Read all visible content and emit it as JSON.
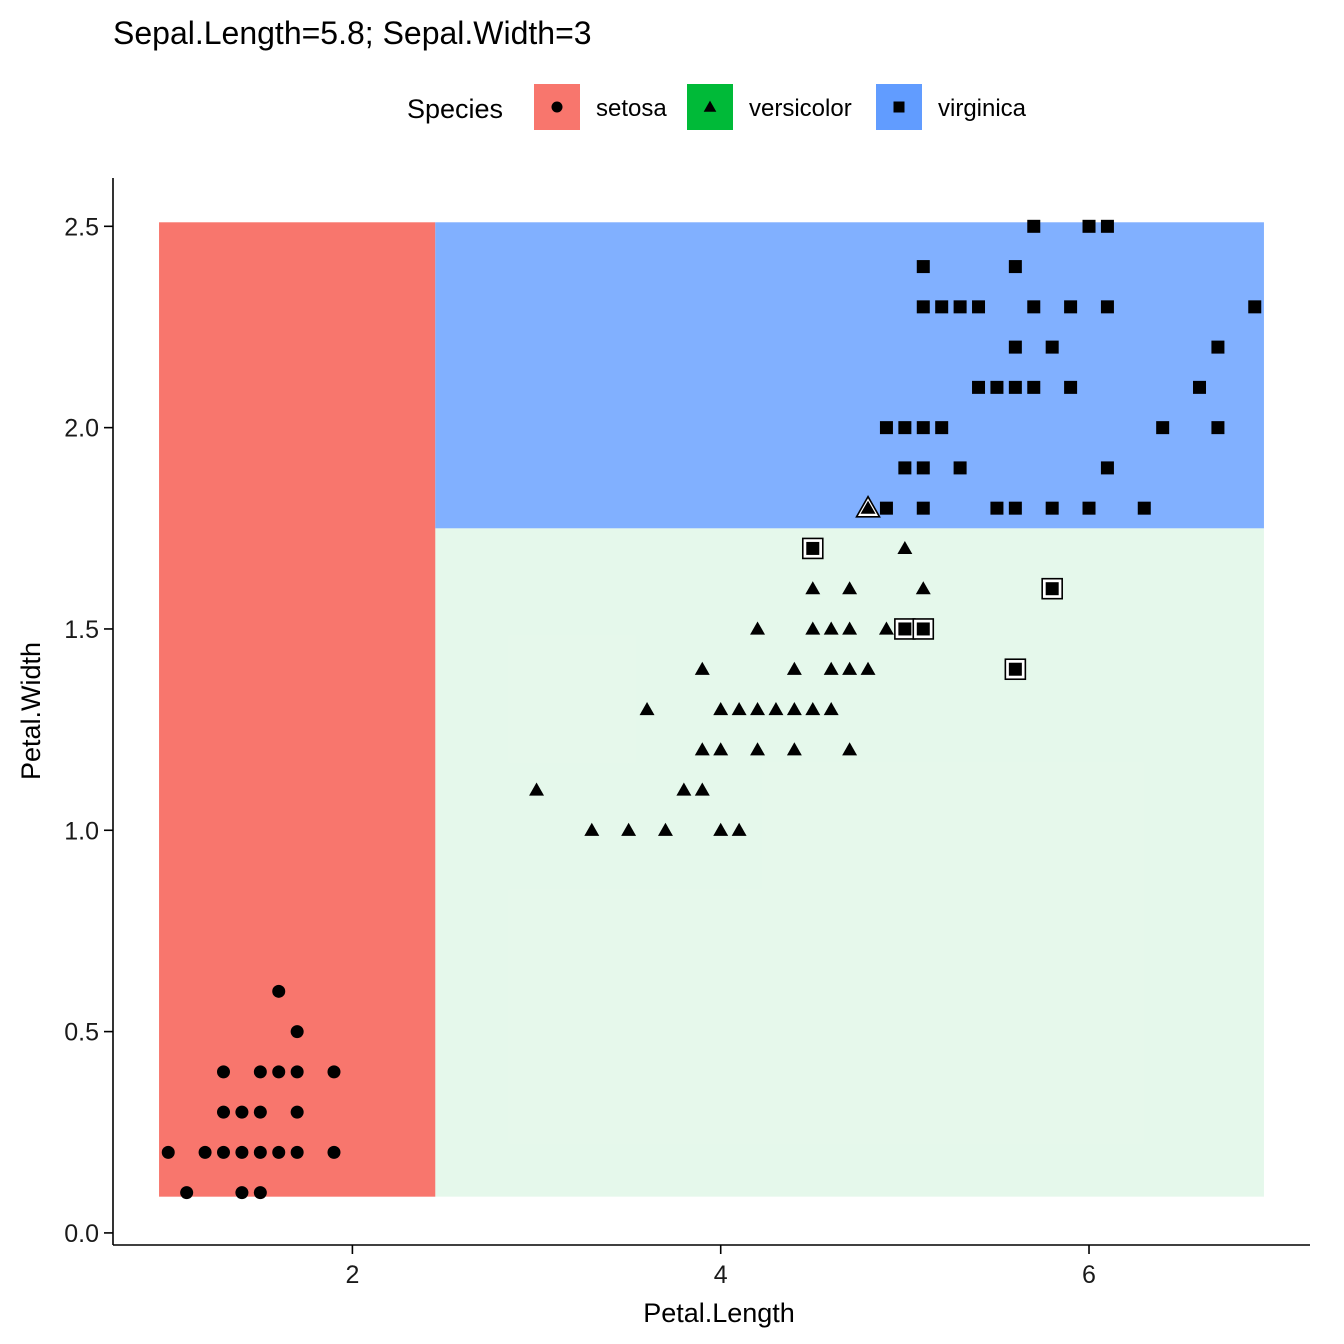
{
  "chart_data": {
    "type": "scatter",
    "title": "Sepal.Length=5.8; Sepal.Width=3",
    "xlabel": "Petal.Length",
    "ylabel": "Petal.Width",
    "xlim": [
      0.7,
      7.2
    ],
    "ylim": [
      -0.03,
      2.62
    ],
    "x_ticks": [
      2,
      4,
      6
    ],
    "x_tick_labels": [
      "2",
      "4",
      "6"
    ],
    "y_ticks": [
      0.0,
      0.5,
      1.0,
      1.5,
      2.0,
      2.5
    ],
    "y_tick_labels": [
      "0.0",
      "0.5",
      "1.0",
      "1.5",
      "2.0",
      "2.5"
    ],
    "grid": false,
    "legend": {
      "title": "Species",
      "position": "top",
      "entries": [
        {
          "label": "setosa",
          "shape": "circle",
          "color": "#F8766D"
        },
        {
          "label": "versicolor",
          "shape": "triangle",
          "color": "#00BA38"
        },
        {
          "label": "virginica",
          "shape": "square",
          "color": "#619CFF"
        }
      ]
    },
    "regions": [
      {
        "species": "setosa",
        "x": [
          0.95,
          2.45
        ],
        "y": [
          0.09,
          2.51
        ],
        "color": "#F8766D",
        "opacity": 1.0
      },
      {
        "species": "versicolor",
        "x": [
          2.45,
          6.95
        ],
        "y": [
          0.09,
          1.75
        ],
        "color": "#00BA38",
        "opacity": 0.1
      },
      {
        "species": "virginica",
        "x": [
          2.45,
          6.95
        ],
        "y": [
          1.75,
          2.51
        ],
        "color": "#619CFF",
        "opacity": 0.8
      }
    ],
    "series": [
      {
        "name": "setosa",
        "shape": "circle",
        "points": [
          [
            1.0,
            0.2
          ],
          [
            1.1,
            0.1
          ],
          [
            1.2,
            0.2
          ],
          [
            1.3,
            0.2
          ],
          [
            1.3,
            0.3
          ],
          [
            1.3,
            0.4
          ],
          [
            1.4,
            0.1
          ],
          [
            1.4,
            0.2
          ],
          [
            1.4,
            0.3
          ],
          [
            1.5,
            0.1
          ],
          [
            1.5,
            0.2
          ],
          [
            1.5,
            0.3
          ],
          [
            1.5,
            0.4
          ],
          [
            1.6,
            0.2
          ],
          [
            1.6,
            0.4
          ],
          [
            1.6,
            0.6
          ],
          [
            1.7,
            0.2
          ],
          [
            1.7,
            0.3
          ],
          [
            1.7,
            0.4
          ],
          [
            1.7,
            0.5
          ],
          [
            1.9,
            0.2
          ],
          [
            1.9,
            0.4
          ]
        ]
      },
      {
        "name": "versicolor",
        "shape": "triangle",
        "points": [
          [
            3.0,
            1.1
          ],
          [
            3.3,
            1.0
          ],
          [
            3.5,
            1.0
          ],
          [
            3.6,
            1.3
          ],
          [
            3.7,
            1.0
          ],
          [
            3.8,
            1.1
          ],
          [
            3.9,
            1.1
          ],
          [
            3.9,
            1.2
          ],
          [
            3.9,
            1.4
          ],
          [
            4.0,
            1.0
          ],
          [
            4.0,
            1.2
          ],
          [
            4.0,
            1.3
          ],
          [
            4.1,
            1.0
          ],
          [
            4.1,
            1.3
          ],
          [
            4.2,
            1.2
          ],
          [
            4.2,
            1.3
          ],
          [
            4.2,
            1.5
          ],
          [
            4.3,
            1.3
          ],
          [
            4.4,
            1.2
          ],
          [
            4.4,
            1.3
          ],
          [
            4.4,
            1.4
          ],
          [
            4.5,
            1.3
          ],
          [
            4.5,
            1.5
          ],
          [
            4.5,
            1.6
          ],
          [
            4.6,
            1.3
          ],
          [
            4.6,
            1.4
          ],
          [
            4.6,
            1.5
          ],
          [
            4.7,
            1.2
          ],
          [
            4.7,
            1.4
          ],
          [
            4.7,
            1.5
          ],
          [
            4.7,
            1.6
          ],
          [
            4.8,
            1.4
          ],
          [
            4.9,
            1.5
          ],
          [
            5.0,
            1.7
          ],
          [
            5.1,
            1.6
          ]
        ],
        "misclassified": [
          [
            4.8,
            1.8
          ]
        ]
      },
      {
        "name": "virginica",
        "shape": "square",
        "points": [
          [
            4.9,
            1.8
          ],
          [
            4.9,
            2.0
          ],
          [
            5.0,
            1.9
          ],
          [
            5.0,
            2.0
          ],
          [
            5.1,
            1.8
          ],
          [
            5.1,
            1.9
          ],
          [
            5.1,
            2.0
          ],
          [
            5.1,
            2.3
          ],
          [
            5.1,
            2.4
          ],
          [
            5.2,
            2.0
          ],
          [
            5.2,
            2.3
          ],
          [
            5.3,
            1.9
          ],
          [
            5.3,
            2.3
          ],
          [
            5.4,
            2.1
          ],
          [
            5.4,
            2.3
          ],
          [
            5.5,
            1.8
          ],
          [
            5.5,
            2.1
          ],
          [
            5.6,
            1.8
          ],
          [
            5.6,
            2.1
          ],
          [
            5.6,
            2.2
          ],
          [
            5.6,
            2.4
          ],
          [
            5.7,
            2.1
          ],
          [
            5.7,
            2.3
          ],
          [
            5.7,
            2.5
          ],
          [
            5.8,
            1.8
          ],
          [
            5.8,
            2.2
          ],
          [
            5.9,
            2.1
          ],
          [
            5.9,
            2.3
          ],
          [
            6.0,
            1.8
          ],
          [
            6.0,
            2.5
          ],
          [
            6.1,
            1.9
          ],
          [
            6.1,
            2.3
          ],
          [
            6.1,
            2.5
          ],
          [
            6.3,
            1.8
          ],
          [
            6.4,
            2.0
          ],
          [
            6.6,
            2.1
          ],
          [
            6.7,
            2.0
          ],
          [
            6.7,
            2.2
          ],
          [
            6.9,
            2.3
          ]
        ],
        "misclassified": [
          [
            4.5,
            1.7
          ],
          [
            5.0,
            1.5
          ],
          [
            5.1,
            1.5
          ],
          [
            5.6,
            1.4
          ],
          [
            5.8,
            1.6
          ]
        ]
      }
    ]
  }
}
